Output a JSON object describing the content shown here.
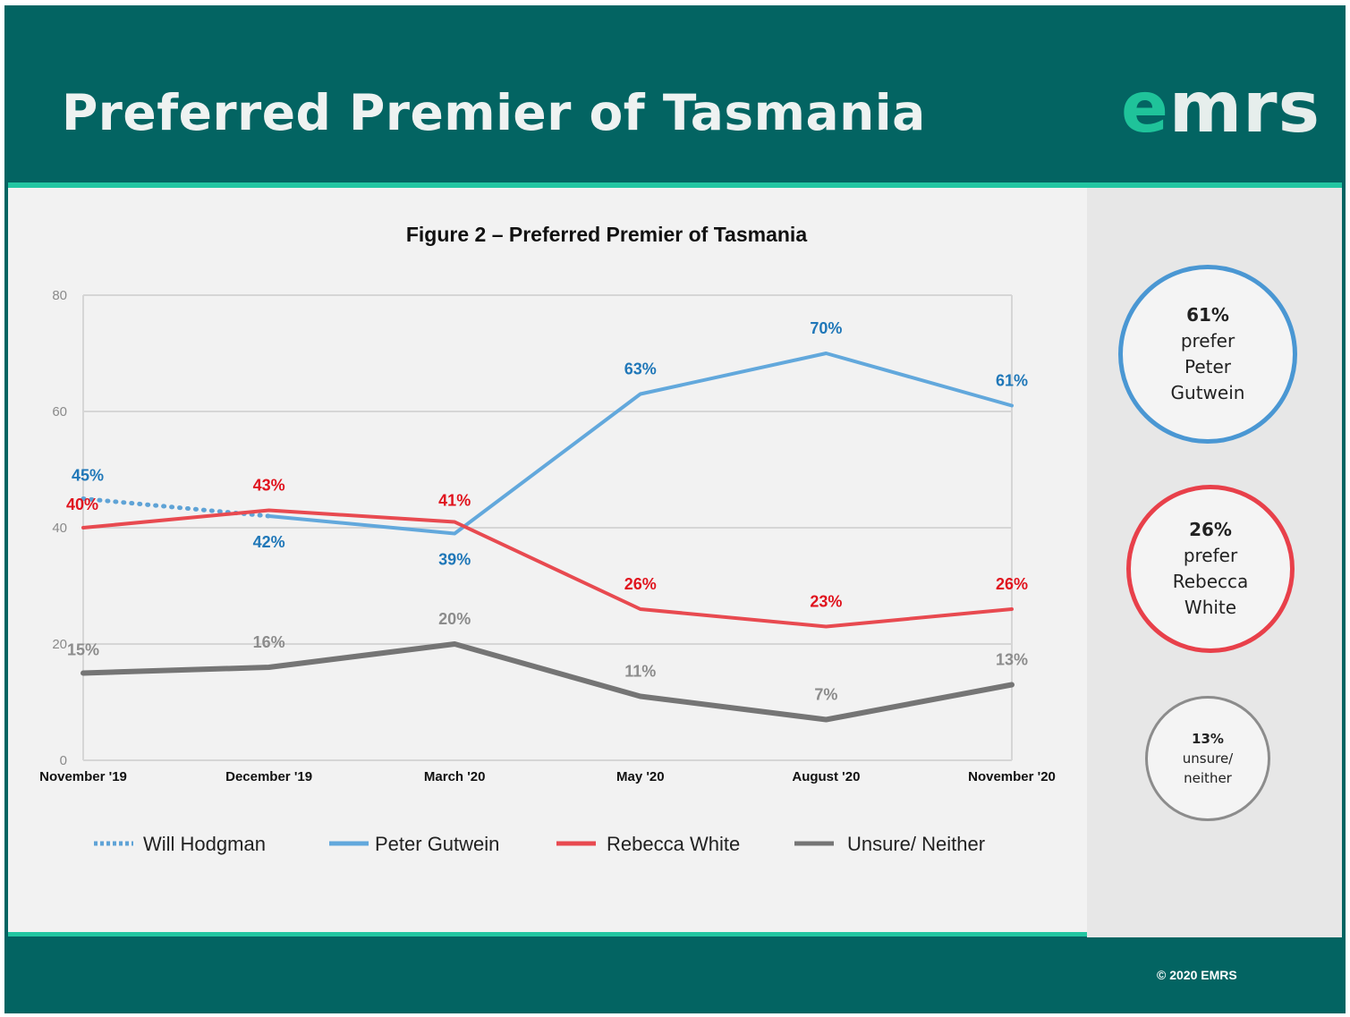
{
  "header": {
    "title": "Preferred Premier of Tasmania",
    "logo_e": "e",
    "logo_rest": "mrs"
  },
  "footer": {
    "copyright": "© 2020 EMRS"
  },
  "callouts": [
    {
      "pct": "61%",
      "lines": [
        "prefer",
        "Peter",
        "Gutwein"
      ],
      "color": "#4a97d3"
    },
    {
      "pct": "26%",
      "lines": [
        "prefer",
        "Rebecca",
        "White"
      ],
      "color": "#e8404a"
    },
    {
      "pct": "13%",
      "lines": [
        "unsure/",
        "neither"
      ],
      "color": "#8c8c8c"
    }
  ],
  "chart_data": {
    "type": "line",
    "title": "Figure 2 – Preferred Premier of Tasmania",
    "categories": [
      "November '19",
      "December '19",
      "March '20",
      "May '20",
      "August '20",
      "November '20"
    ],
    "ylim": [
      0,
      80
    ],
    "yticks": [
      0,
      20,
      40,
      60,
      80
    ],
    "grid": true,
    "legend_position": "bottom",
    "series": [
      {
        "name": "Will Hodgman",
        "color": "#5fa3d6",
        "style": "dotted",
        "values": [
          45,
          42,
          null,
          null,
          null,
          null
        ],
        "labels": [
          "45%",
          "",
          "",
          "",
          "",
          ""
        ],
        "label_color": "#1f77b8"
      },
      {
        "name": "Peter Gutwein",
        "color": "#62a8dc",
        "style": "solid",
        "values": [
          null,
          42,
          39,
          63,
          70,
          61
        ],
        "labels": [
          "",
          "42%",
          "39%",
          "63%",
          "70%",
          "61%"
        ],
        "label_color": "#1f77b8"
      },
      {
        "name": "Rebecca White",
        "color": "#e84a50",
        "style": "solid",
        "values": [
          40,
          43,
          41,
          26,
          23,
          26
        ],
        "labels": [
          "40%",
          "43%",
          "41%",
          "26%",
          "23%",
          "26%"
        ],
        "label_color": "#e0141e"
      },
      {
        "name": "Unsure/ Neither",
        "color": "#757575",
        "style": "solid",
        "values": [
          15,
          16,
          20,
          11,
          7,
          13
        ],
        "labels": [
          "15%",
          "16%",
          "20%",
          "11%",
          "7%",
          "13%"
        ],
        "label_color": "#8c8c8c"
      }
    ]
  }
}
